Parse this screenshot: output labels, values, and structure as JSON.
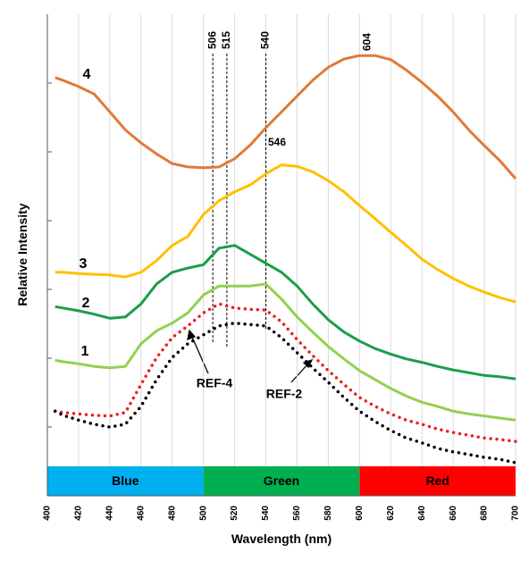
{
  "chart_data": {
    "type": "line",
    "xlabel": "Wavelength (nm)",
    "ylabel": "Relative Intensity",
    "x": [
      405,
      410,
      420,
      430,
      440,
      450,
      460,
      470,
      480,
      490,
      500,
      510,
      520,
      530,
      540,
      550,
      560,
      570,
      580,
      590,
      600,
      610,
      620,
      630,
      640,
      650,
      660,
      670,
      680,
      690,
      700
    ],
    "series": [
      {
        "name": "4",
        "color": "#e07a3a",
        "style": "solid",
        "values": [
          6.08,
          6.04,
          5.95,
          5.84,
          5.58,
          5.32,
          5.13,
          4.97,
          4.83,
          4.78,
          4.77,
          4.78,
          4.9,
          5.1,
          5.35,
          5.58,
          5.81,
          6.04,
          6.23,
          6.35,
          6.4,
          6.4,
          6.34,
          6.19,
          6.01,
          5.81,
          5.58,
          5.32,
          5.09,
          4.87,
          4.61
        ]
      },
      {
        "name": "3",
        "color": "#ffc000",
        "style": "solid",
        "values": [
          3.25,
          3.25,
          3.23,
          3.22,
          3.21,
          3.18,
          3.25,
          3.42,
          3.64,
          3.77,
          4.09,
          4.29,
          4.42,
          4.52,
          4.68,
          4.81,
          4.79,
          4.71,
          4.58,
          4.42,
          4.22,
          4.03,
          3.83,
          3.64,
          3.44,
          3.29,
          3.16,
          3.05,
          2.96,
          2.88,
          2.82
        ]
      },
      {
        "name": "2",
        "color": "#1a9e4a",
        "style": "solid",
        "values": [
          2.75,
          2.73,
          2.69,
          2.64,
          2.58,
          2.6,
          2.79,
          3.08,
          3.25,
          3.31,
          3.36,
          3.6,
          3.64,
          3.51,
          3.38,
          3.25,
          3.05,
          2.79,
          2.56,
          2.38,
          2.25,
          2.14,
          2.06,
          1.99,
          1.94,
          1.88,
          1.83,
          1.79,
          1.75,
          1.73,
          1.7
        ]
      },
      {
        "name": "1",
        "color": "#92d050",
        "style": "solid",
        "values": [
          1.97,
          1.95,
          1.92,
          1.88,
          1.86,
          1.88,
          2.21,
          2.4,
          2.51,
          2.66,
          2.92,
          3.05,
          3.05,
          3.05,
          3.08,
          2.86,
          2.6,
          2.38,
          2.17,
          1.99,
          1.82,
          1.69,
          1.56,
          1.45,
          1.36,
          1.3,
          1.23,
          1.19,
          1.16,
          1.13,
          1.1
        ]
      },
      {
        "name": "REF-4",
        "color": "#e8201a",
        "style": "dotted",
        "values": [
          1.23,
          1.21,
          1.19,
          1.17,
          1.16,
          1.21,
          1.62,
          2.01,
          2.3,
          2.47,
          2.66,
          2.79,
          2.73,
          2.71,
          2.7,
          2.53,
          2.27,
          2.04,
          1.82,
          1.62,
          1.43,
          1.3,
          1.19,
          1.1,
          1.04,
          0.97,
          0.92,
          0.88,
          0.84,
          0.82,
          0.79
        ]
      },
      {
        "name": "REF-2",
        "color": "#000000",
        "style": "dotted",
        "values": [
          1.23,
          1.17,
          1.1,
          1.04,
          1.0,
          1.04,
          1.3,
          1.69,
          2.01,
          2.21,
          2.34,
          2.47,
          2.51,
          2.49,
          2.47,
          2.3,
          2.08,
          1.86,
          1.65,
          1.43,
          1.23,
          1.08,
          0.95,
          0.84,
          0.77,
          0.69,
          0.64,
          0.6,
          0.56,
          0.53,
          0.48
        ]
      }
    ],
    "markers": [
      506,
      515,
      540
    ],
    "peak_labels": [
      604,
      546
    ],
    "bands": [
      {
        "label": "Blue",
        "start": 400,
        "end": 500,
        "color": "#00b0f0"
      },
      {
        "label": "Green",
        "start": 500,
        "end": 600,
        "color": "#00b050"
      },
      {
        "label": "Red",
        "start": 600,
        "end": 700,
        "color": "#ff0000"
      }
    ],
    "xlim": [
      400,
      700
    ],
    "xticks": [
      400,
      420,
      440,
      460,
      480,
      500,
      520,
      540,
      560,
      580,
      600,
      620,
      640,
      660,
      680,
      700
    ],
    "ylim": [
      0,
      7
    ],
    "yticks": [
      1,
      2,
      3,
      4,
      5,
      6
    ],
    "grid": true
  }
}
